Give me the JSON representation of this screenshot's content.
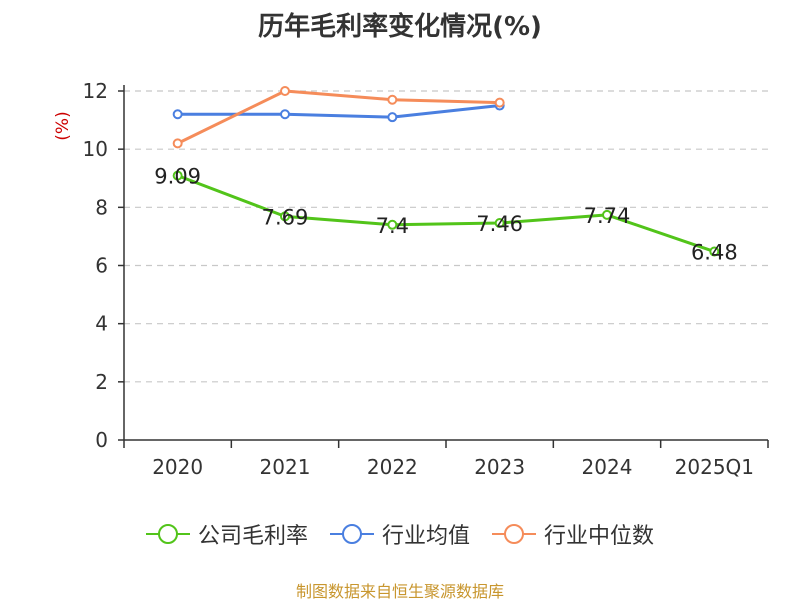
{
  "title": "历年毛利率变化情况(%)",
  "source": "制图数据来自恒生聚源数据库",
  "colors": {
    "company": "#52c41a",
    "industry_avg": "#4a7fe0",
    "industry_median": "#f58c5a",
    "axis": "#333333",
    "grid": "#c8c8c8",
    "ylabel": "#cc0000"
  },
  "chart_data": {
    "type": "line",
    "title": "历年毛利率变化情况(%)",
    "xlabel": "",
    "ylabel": "(%)",
    "x": [
      "2020",
      "2021",
      "2022",
      "2023",
      "2024",
      "2025Q1"
    ],
    "ylim": [
      0,
      12
    ],
    "yticks": [
      0,
      2,
      4,
      6,
      8,
      10,
      12
    ],
    "grid": true,
    "legend_position": "bottom",
    "series": [
      {
        "name": "公司毛利率",
        "values": [
          9.09,
          7.69,
          7.4,
          7.46,
          7.74,
          6.48
        ],
        "labels": [
          "9.09",
          "7.69",
          "7.4",
          "7.46",
          "7.74",
          "6.48"
        ],
        "show_labels": true
      },
      {
        "name": "行业均值",
        "values": [
          11.2,
          11.2,
          11.1,
          11.5,
          null,
          null
        ],
        "show_labels": false
      },
      {
        "name": "行业中位数",
        "values": [
          10.2,
          12.0,
          11.7,
          11.6,
          null,
          null
        ],
        "show_labels": false
      }
    ]
  }
}
